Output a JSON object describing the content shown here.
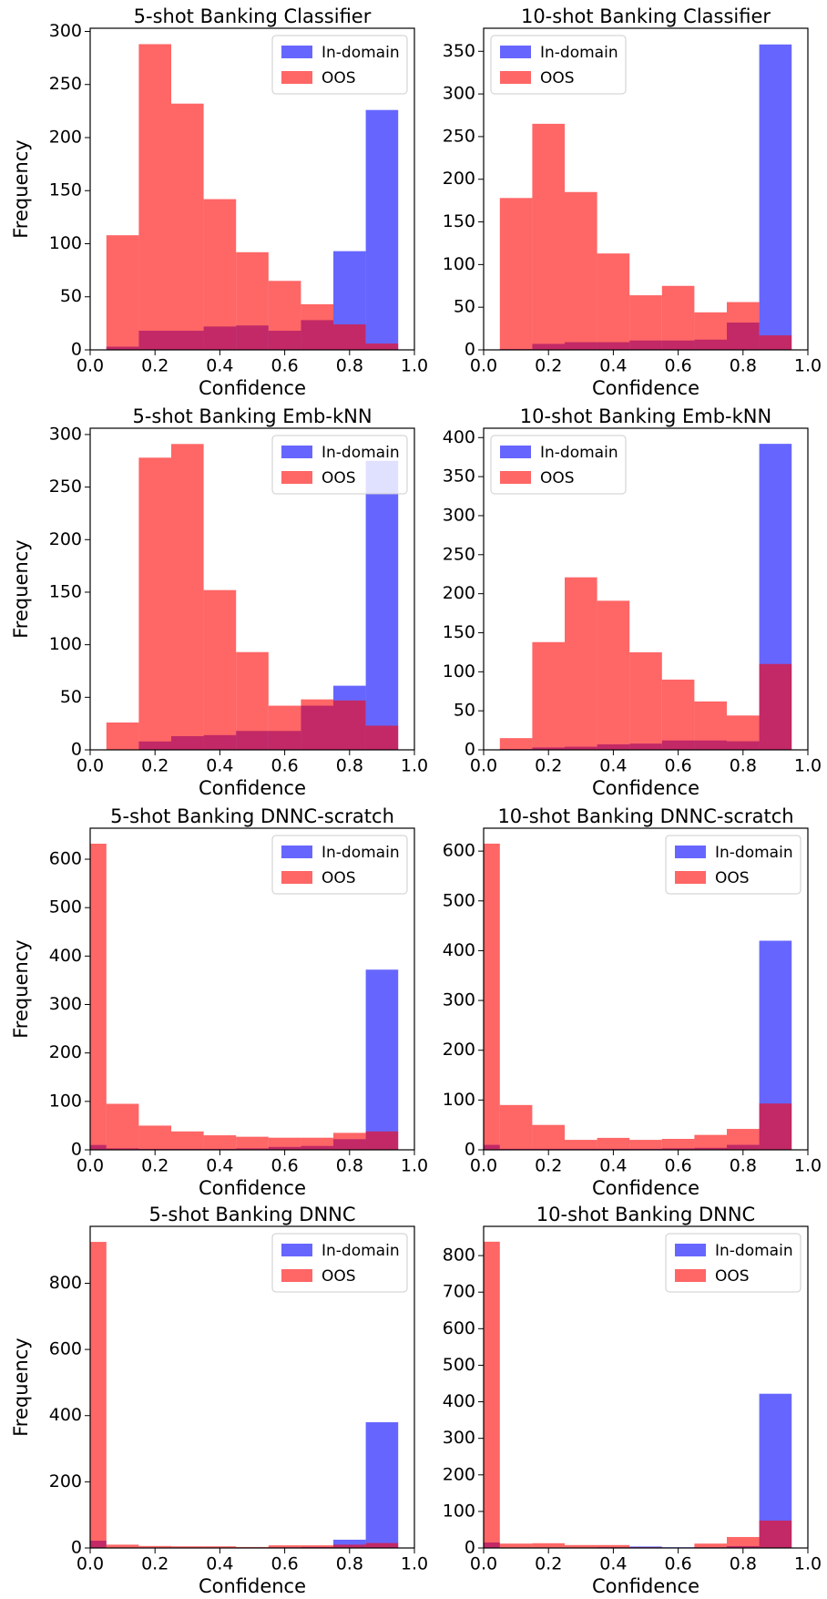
{
  "chart_data": [
    {
      "type": "histogram",
      "title": "5-shot Banking Classifier",
      "xlabel": "Confidence",
      "ylabel": "Frequency",
      "legend": "upper right",
      "bins": [
        0.05,
        0.15,
        0.25,
        0.35,
        0.45,
        0.55,
        0.65,
        0.75,
        0.85,
        0.95
      ],
      "series": [
        {
          "name": "In-domain",
          "color": "#0000ff",
          "values": [
            3,
            18,
            18,
            22,
            23,
            18,
            28,
            93,
            226
          ]
        },
        {
          "name": "OOS",
          "color": "#ff0000",
          "values": [
            108,
            288,
            232,
            142,
            92,
            65,
            43,
            24,
            6
          ]
        }
      ],
      "xlim": [
        0,
        1
      ],
      "xticks": [
        {
          "value": 0,
          "label": "0.0"
        },
        {
          "value": 0.2,
          "label": "0.2"
        },
        {
          "value": 0.4,
          "label": "0.4"
        },
        {
          "value": 0.6,
          "label": "0.6"
        },
        {
          "value": 0.8,
          "label": "0.8"
        },
        {
          "value": 1,
          "label": "1.0"
        }
      ],
      "ylim": [
        0,
        303
      ],
      "yticks": [
        0,
        50,
        100,
        150,
        200,
        250,
        300
      ]
    },
    {
      "type": "histogram",
      "title": "10-shot Banking Classifier",
      "xlabel": "Confidence",
      "legend": "upper left",
      "bins": [
        0.05,
        0.15,
        0.25,
        0.35,
        0.45,
        0.55,
        0.65,
        0.75,
        0.85,
        0.95
      ],
      "series": [
        {
          "name": "In-domain",
          "color": "#0000ff",
          "values": [
            1,
            7,
            9,
            9,
            11,
            11,
            12,
            32,
            358
          ]
        },
        {
          "name": "OOS",
          "color": "#ff0000",
          "values": [
            178,
            265,
            185,
            113,
            64,
            75,
            44,
            56,
            17
          ]
        }
      ],
      "xlim": [
        0,
        1
      ],
      "xticks": [
        {
          "value": 0,
          "label": "0.0"
        },
        {
          "value": 0.2,
          "label": "0.2"
        },
        {
          "value": 0.4,
          "label": "0.4"
        },
        {
          "value": 0.6,
          "label": "0.6"
        },
        {
          "value": 0.8,
          "label": "0.8"
        },
        {
          "value": 1,
          "label": "1.0"
        }
      ],
      "ylim": [
        0,
        377
      ],
      "yticks": [
        0,
        50,
        100,
        150,
        200,
        250,
        300,
        350
      ]
    },
    {
      "type": "histogram",
      "title": "5-shot Banking Emb-kNN",
      "xlabel": "Confidence",
      "ylabel": "Frequency",
      "legend": "upper right",
      "bins": [
        0.05,
        0.15,
        0.25,
        0.35,
        0.45,
        0.55,
        0.65,
        0.75,
        0.85,
        0.95
      ],
      "series": [
        {
          "name": "In-domain",
          "color": "#0000ff",
          "values": [
            0,
            8,
            13,
            14,
            18,
            18,
            42,
            61,
            275
          ]
        },
        {
          "name": "OOS",
          "color": "#ff0000",
          "values": [
            26,
            278,
            291,
            152,
            93,
            42,
            48,
            47,
            23
          ]
        }
      ],
      "xlim": [
        0,
        1
      ],
      "xticks": [
        {
          "value": 0,
          "label": "0.0"
        },
        {
          "value": 0.2,
          "label": "0.2"
        },
        {
          "value": 0.4,
          "label": "0.4"
        },
        {
          "value": 0.6,
          "label": "0.6"
        },
        {
          "value": 0.8,
          "label": "0.8"
        },
        {
          "value": 1,
          "label": "1.0"
        }
      ],
      "ylim": [
        0,
        306
      ],
      "yticks": [
        0,
        50,
        100,
        150,
        200,
        250,
        300
      ]
    },
    {
      "type": "histogram",
      "title": "10-shot Banking Emb-kNN",
      "xlabel": "Confidence",
      "legend": "upper left",
      "bins": [
        0.05,
        0.15,
        0.25,
        0.35,
        0.45,
        0.55,
        0.65,
        0.75,
        0.85,
        0.95
      ],
      "series": [
        {
          "name": "In-domain",
          "color": "#0000ff",
          "values": [
            1,
            3,
            4,
            7,
            8,
            12,
            12,
            11,
            392
          ]
        },
        {
          "name": "OOS",
          "color": "#ff0000",
          "values": [
            15,
            138,
            221,
            191,
            125,
            90,
            62,
            44,
            110
          ]
        }
      ],
      "xlim": [
        0,
        1
      ],
      "xticks": [
        {
          "value": 0,
          "label": "0.0"
        },
        {
          "value": 0.2,
          "label": "0.2"
        },
        {
          "value": 0.4,
          "label": "0.4"
        },
        {
          "value": 0.6,
          "label": "0.6"
        },
        {
          "value": 0.8,
          "label": "0.8"
        },
        {
          "value": 1,
          "label": "1.0"
        }
      ],
      "ylim": [
        0,
        412
      ],
      "yticks": [
        0,
        50,
        100,
        150,
        200,
        250,
        300,
        350,
        400
      ]
    },
    {
      "type": "histogram",
      "title": "5-shot Banking DNNC-scratch",
      "xlabel": "Confidence",
      "ylabel": "Frequency",
      "legend": "upper right",
      "bins": [
        -0.05,
        0.05,
        0.15,
        0.25,
        0.35,
        0.45,
        0.55,
        0.65,
        0.75,
        0.85,
        0.95
      ],
      "series": [
        {
          "name": "In-domain",
          "color": "#0000ff",
          "values": [
            10,
            3,
            2,
            2,
            2,
            3,
            6,
            8,
            22,
            372
          ]
        },
        {
          "name": "OOS",
          "color": "#ff0000",
          "values": [
            632,
            95,
            50,
            38,
            30,
            27,
            25,
            25,
            35,
            38
          ]
        }
      ],
      "xlim": [
        0,
        1
      ],
      "xticks": [
        {
          "value": 0,
          "label": "0.0"
        },
        {
          "value": 0.2,
          "label": "0.2"
        },
        {
          "value": 0.4,
          "label": "0.4"
        },
        {
          "value": 0.6,
          "label": "0.6"
        },
        {
          "value": 0.8,
          "label": "0.8"
        },
        {
          "value": 1,
          "label": "1.0"
        }
      ],
      "ylim": [
        0,
        664
      ],
      "yticks": [
        0,
        100,
        200,
        300,
        400,
        500,
        600
      ]
    },
    {
      "type": "histogram",
      "title": "10-shot Banking DNNC-scratch",
      "xlabel": "Confidence",
      "legend": "upper right",
      "bins": [
        -0.05,
        0.05,
        0.15,
        0.25,
        0.35,
        0.45,
        0.55,
        0.65,
        0.75,
        0.85,
        0.95
      ],
      "series": [
        {
          "name": "In-domain",
          "color": "#0000ff",
          "values": [
            10,
            2,
            2,
            2,
            2,
            2,
            3,
            4,
            10,
            420
          ]
        },
        {
          "name": "OOS",
          "color": "#ff0000",
          "values": [
            615,
            90,
            50,
            20,
            24,
            20,
            22,
            30,
            42,
            93
          ]
        }
      ],
      "xlim": [
        0,
        1
      ],
      "xticks": [
        {
          "value": 0,
          "label": "0.0"
        },
        {
          "value": 0.2,
          "label": "0.2"
        },
        {
          "value": 0.4,
          "label": "0.4"
        },
        {
          "value": 0.6,
          "label": "0.6"
        },
        {
          "value": 0.8,
          "label": "0.8"
        },
        {
          "value": 1,
          "label": "1.0"
        }
      ],
      "ylim": [
        0,
        646
      ],
      "yticks": [
        0,
        100,
        200,
        300,
        400,
        500,
        600
      ]
    },
    {
      "type": "histogram",
      "title": "5-shot Banking DNNC",
      "xlabel": "Confidence",
      "ylabel": "Frequency",
      "legend": "upper right",
      "bins": [
        -0.05,
        0.05,
        0.15,
        0.25,
        0.35,
        0.45,
        0.55,
        0.65,
        0.75,
        0.85,
        0.95
      ],
      "series": [
        {
          "name": "In-domain",
          "color": "#0000ff",
          "values": [
            22,
            1,
            1,
            1,
            1,
            1,
            2,
            3,
            25,
            380
          ]
        },
        {
          "name": "OOS",
          "color": "#ff0000",
          "values": [
            925,
            10,
            6,
            5,
            5,
            3,
            8,
            8,
            10,
            15
          ]
        }
      ],
      "xlim": [
        0,
        1
      ],
      "xticks": [
        {
          "value": 0,
          "label": "0.0"
        },
        {
          "value": 0.2,
          "label": "0.2"
        },
        {
          "value": 0.4,
          "label": "0.4"
        },
        {
          "value": 0.6,
          "label": "0.6"
        },
        {
          "value": 0.8,
          "label": "0.8"
        },
        {
          "value": 1,
          "label": "1.0"
        }
      ],
      "ylim": [
        0,
        972
      ],
      "yticks": [
        0,
        200,
        400,
        600,
        800
      ]
    },
    {
      "type": "histogram",
      "title": "10-shot Banking DNNC",
      "xlabel": "Confidence",
      "legend": "upper right",
      "bins": [
        -0.05,
        0.05,
        0.15,
        0.25,
        0.35,
        0.45,
        0.55,
        0.65,
        0.75,
        0.85,
        0.95
      ],
      "series": [
        {
          "name": "In-domain",
          "color": "#0000ff",
          "values": [
            15,
            1,
            1,
            1,
            2,
            4,
            2,
            2,
            5,
            422
          ]
        },
        {
          "name": "OOS",
          "color": "#ff0000",
          "values": [
            838,
            12,
            13,
            8,
            8,
            2,
            1,
            12,
            30,
            75
          ]
        }
      ],
      "xlim": [
        0,
        1
      ],
      "xticks": [
        {
          "value": 0,
          "label": "0.0"
        },
        {
          "value": 0.2,
          "label": "0.2"
        },
        {
          "value": 0.4,
          "label": "0.4"
        },
        {
          "value": 0.6,
          "label": "0.6"
        },
        {
          "value": 0.8,
          "label": "0.8"
        },
        {
          "value": 1,
          "label": "1.0"
        }
      ],
      "ylim": [
        0,
        880
      ],
      "yticks": [
        0,
        100,
        200,
        300,
        400,
        500,
        600,
        700,
        800
      ]
    }
  ]
}
